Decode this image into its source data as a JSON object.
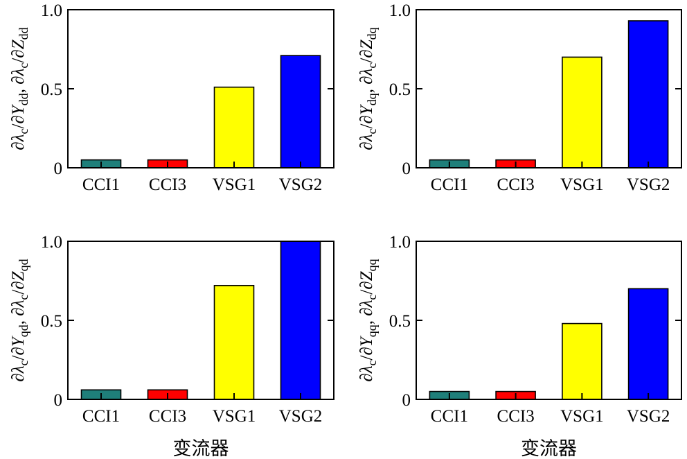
{
  "chart_data": [
    {
      "type": "bar",
      "categories": [
        "CCI1",
        "CCI3",
        "VSG1",
        "VSG2"
      ],
      "values": [
        0.05,
        0.05,
        0.51,
        0.71
      ],
      "colors": [
        "#1f7f7a",
        "#ff0000",
        "#ffff00",
        "#0000ff"
      ],
      "ylim": [
        0,
        1.0
      ],
      "yticks": [
        "0",
        "0.5",
        "1.0"
      ],
      "ylabel": {
        "p1": "∂",
        "p2": "λ",
        "p3": "c",
        "p4": "/∂",
        "p5": "Y",
        "p6": "dd",
        "p7": ", ∂",
        "p8": "λ",
        "p9": "c",
        "p10": "/∂",
        "p11": "Z",
        "p12": "dd"
      },
      "xlabel": ""
    },
    {
      "type": "bar",
      "categories": [
        "CCI1",
        "CCI3",
        "VSG1",
        "VSG2"
      ],
      "values": [
        0.05,
        0.05,
        0.7,
        0.93
      ],
      "colors": [
        "#1f7f7a",
        "#ff0000",
        "#ffff00",
        "#0000ff"
      ],
      "ylim": [
        0,
        1.0
      ],
      "yticks": [
        "0",
        "0.5",
        "1.0"
      ],
      "ylabel": {
        "p1": "∂",
        "p2": "λ",
        "p3": "c",
        "p4": "/∂",
        "p5": "Y",
        "p6": "dq",
        "p7": ", ∂",
        "p8": "λ",
        "p9": "c",
        "p10": "/∂",
        "p11": "Z",
        "p12": "dq"
      },
      "xlabel": ""
    },
    {
      "type": "bar",
      "categories": [
        "CCI1",
        "CCI3",
        "VSG1",
        "VSG2"
      ],
      "values": [
        0.06,
        0.06,
        0.72,
        1.0
      ],
      "colors": [
        "#1f7f7a",
        "#ff0000",
        "#ffff00",
        "#0000ff"
      ],
      "ylim": [
        0,
        1.0
      ],
      "yticks": [
        "0",
        "0.5",
        "1.0"
      ],
      "ylabel": {
        "p1": "∂",
        "p2": "λ",
        "p3": "c",
        "p4": "/∂",
        "p5": "Y",
        "p6": "qd",
        "p7": ", ∂",
        "p8": "λ",
        "p9": "c",
        "p10": "/∂",
        "p11": "Z",
        "p12": "qd"
      },
      "xlabel": "变流器"
    },
    {
      "type": "bar",
      "categories": [
        "CCI1",
        "CCI3",
        "VSG1",
        "VSG2"
      ],
      "values": [
        0.05,
        0.05,
        0.48,
        0.7
      ],
      "colors": [
        "#1f7f7a",
        "#ff0000",
        "#ffff00",
        "#0000ff"
      ],
      "ylim": [
        0,
        1.0
      ],
      "yticks": [
        "0",
        "0.5",
        "1.0"
      ],
      "ylabel": {
        "p1": "∂",
        "p2": "λ",
        "p3": "c",
        "p4": "/∂",
        "p5": "Y",
        "p6": "qq",
        "p7": ", ∂",
        "p8": "λ",
        "p9": "c",
        "p10": "/∂",
        "p11": "Z",
        "p12": "qq"
      },
      "xlabel": "变流器"
    }
  ]
}
